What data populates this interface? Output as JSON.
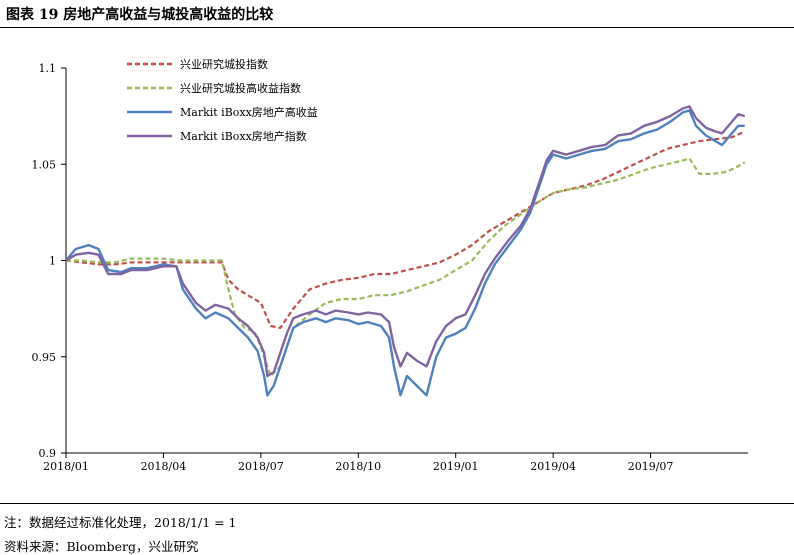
{
  "figure": {
    "title": "图表 19  房地产高收益与城投高收益的比较",
    "note": "注：数据经过标准化处理，2018/1/1 = 1",
    "source": "资料来源：Bloomberg，兴业研究"
  },
  "chart_data": {
    "type": "line",
    "title": "",
    "xlabel": "",
    "ylabel": "",
    "ylim": [
      0.9,
      1.1
    ],
    "y_ticks": [
      "0.9",
      "0.95",
      "1",
      "1.05",
      "1.1"
    ],
    "x_ticks": [
      "2018/01",
      "2018/04",
      "2018/07",
      "2018/10",
      "2019/01",
      "2019/04",
      "2019/07"
    ],
    "x_tick_positions": [
      0,
      3,
      6,
      9,
      12,
      15,
      18
    ],
    "xlim": [
      0,
      21
    ],
    "grid": false,
    "legend_position": "top-left",
    "series": [
      {
        "name": "兴业研究城投指数",
        "color": "#C0504D",
        "style": "dashed",
        "points": [
          [
            0,
            1.0
          ],
          [
            0.5,
            0.999
          ],
          [
            1,
            0.998
          ],
          [
            1.5,
            0.998
          ],
          [
            2,
            0.999
          ],
          [
            2.5,
            0.999
          ],
          [
            3,
            0.999
          ],
          [
            3.5,
            0.999
          ],
          [
            4,
            0.999
          ],
          [
            4.8,
            0.999
          ],
          [
            5,
            0.99
          ],
          [
            5.3,
            0.985
          ],
          [
            5.6,
            0.982
          ],
          [
            6,
            0.978
          ],
          [
            6.3,
            0.966
          ],
          [
            6.6,
            0.965
          ],
          [
            7,
            0.975
          ],
          [
            7.5,
            0.985
          ],
          [
            8,
            0.988
          ],
          [
            8.5,
            0.99
          ],
          [
            9,
            0.991
          ],
          [
            9.5,
            0.993
          ],
          [
            10,
            0.993
          ],
          [
            10.5,
            0.995
          ],
          [
            11,
            0.997
          ],
          [
            11.5,
            0.999
          ],
          [
            12,
            1.003
          ],
          [
            12.5,
            1.008
          ],
          [
            13,
            1.015
          ],
          [
            13.5,
            1.02
          ],
          [
            14,
            1.025
          ],
          [
            14.5,
            1.03
          ],
          [
            15,
            1.035
          ],
          [
            15.5,
            1.037
          ],
          [
            16,
            1.039
          ],
          [
            16.5,
            1.042
          ],
          [
            17,
            1.046
          ],
          [
            17.5,
            1.05
          ],
          [
            18,
            1.054
          ],
          [
            18.5,
            1.058
          ],
          [
            19,
            1.06
          ],
          [
            19.5,
            1.062
          ],
          [
            20,
            1.063
          ],
          [
            20.5,
            1.064
          ],
          [
            20.9,
            1.067
          ]
        ]
      },
      {
        "name": "兴业研究城投高收益指数",
        "color": "#9BBB59",
        "style": "dashed",
        "points": [
          [
            0,
            1.0
          ],
          [
            0.5,
            1.0
          ],
          [
            1,
            0.999
          ],
          [
            1.5,
            0.999
          ],
          [
            2,
            1.001
          ],
          [
            2.5,
            1.001
          ],
          [
            3,
            1.001
          ],
          [
            3.5,
            1.0
          ],
          [
            4,
            1.0
          ],
          [
            4.8,
            1.0
          ],
          [
            5,
            0.985
          ],
          [
            5.2,
            0.972
          ],
          [
            5.5,
            0.965
          ],
          [
            5.8,
            0.963
          ],
          [
            6,
            0.955
          ],
          [
            6.3,
            0.94
          ],
          [
            6.6,
            0.945
          ],
          [
            7,
            0.965
          ],
          [
            7.5,
            0.972
          ],
          [
            8,
            0.978
          ],
          [
            8.5,
            0.98
          ],
          [
            9,
            0.98
          ],
          [
            9.5,
            0.982
          ],
          [
            10,
            0.982
          ],
          [
            10.5,
            0.984
          ],
          [
            11,
            0.987
          ],
          [
            11.5,
            0.99
          ],
          [
            12,
            0.995
          ],
          [
            12.5,
            1.0
          ],
          [
            13,
            1.01
          ],
          [
            13.5,
            1.018
          ],
          [
            14,
            1.024
          ],
          [
            14.5,
            1.03
          ],
          [
            15,
            1.035
          ],
          [
            15.5,
            1.037
          ],
          [
            16,
            1.038
          ],
          [
            16.5,
            1.04
          ],
          [
            17,
            1.042
          ],
          [
            17.5,
            1.045
          ],
          [
            18,
            1.048
          ],
          [
            18.5,
            1.05
          ],
          [
            19,
            1.052
          ],
          [
            19.2,
            1.053
          ],
          [
            19.5,
            1.045
          ],
          [
            19.9,
            1.045
          ],
          [
            20.3,
            1.046
          ],
          [
            20.6,
            1.048
          ],
          [
            20.9,
            1.051
          ]
        ]
      },
      {
        "name": "Markit iBoxx房地产高收益",
        "color": "#4F81BD",
        "style": "solid",
        "points": [
          [
            0,
            1.0
          ],
          [
            0.3,
            1.006
          ],
          [
            0.7,
            1.008
          ],
          [
            1,
            1.006
          ],
          [
            1.3,
            0.995
          ],
          [
            1.7,
            0.994
          ],
          [
            2,
            0.996
          ],
          [
            2.5,
            0.996
          ],
          [
            3,
            0.998
          ],
          [
            3.4,
            0.997
          ],
          [
            3.6,
            0.985
          ],
          [
            4,
            0.975
          ],
          [
            4.3,
            0.97
          ],
          [
            4.6,
            0.973
          ],
          [
            5,
            0.97
          ],
          [
            5.3,
            0.965
          ],
          [
            5.6,
            0.96
          ],
          [
            5.9,
            0.953
          ],
          [
            6.1,
            0.94
          ],
          [
            6.2,
            0.93
          ],
          [
            6.4,
            0.935
          ],
          [
            6.6,
            0.945
          ],
          [
            6.8,
            0.955
          ],
          [
            7,
            0.965
          ],
          [
            7.3,
            0.968
          ],
          [
            7.7,
            0.97
          ],
          [
            8,
            0.968
          ],
          [
            8.3,
            0.97
          ],
          [
            8.7,
            0.969
          ],
          [
            9,
            0.967
          ],
          [
            9.3,
            0.968
          ],
          [
            9.7,
            0.966
          ],
          [
            9.95,
            0.96
          ],
          [
            10.1,
            0.945
          ],
          [
            10.3,
            0.93
          ],
          [
            10.5,
            0.94
          ],
          [
            10.8,
            0.935
          ],
          [
            11.1,
            0.93
          ],
          [
            11.4,
            0.95
          ],
          [
            11.7,
            0.96
          ],
          [
            12,
            0.962
          ],
          [
            12.3,
            0.965
          ],
          [
            12.6,
            0.975
          ],
          [
            12.9,
            0.988
          ],
          [
            13.2,
            0.998
          ],
          [
            13.6,
            1.007
          ],
          [
            14,
            1.016
          ],
          [
            14.3,
            1.025
          ],
          [
            14.6,
            1.04
          ],
          [
            14.8,
            1.05
          ],
          [
            15,
            1.055
          ],
          [
            15.4,
            1.053
          ],
          [
            15.8,
            1.055
          ],
          [
            16.2,
            1.057
          ],
          [
            16.6,
            1.058
          ],
          [
            17,
            1.062
          ],
          [
            17.4,
            1.063
          ],
          [
            17.8,
            1.066
          ],
          [
            18.2,
            1.068
          ],
          [
            18.6,
            1.072
          ],
          [
            19,
            1.077
          ],
          [
            19.2,
            1.078
          ],
          [
            19.4,
            1.07
          ],
          [
            19.7,
            1.065
          ],
          [
            20,
            1.062
          ],
          [
            20.2,
            1.06
          ],
          [
            20.5,
            1.066
          ],
          [
            20.7,
            1.07
          ],
          [
            20.9,
            1.07
          ]
        ]
      },
      {
        "name": "Markit iBoxx房地产指数",
        "color": "#8064A2",
        "style": "solid",
        "points": [
          [
            0,
            1.0
          ],
          [
            0.3,
            1.003
          ],
          [
            0.7,
            1.004
          ],
          [
            1,
            1.003
          ],
          [
            1.3,
            0.993
          ],
          [
            1.7,
            0.993
          ],
          [
            2,
            0.995
          ],
          [
            2.5,
            0.995
          ],
          [
            3,
            0.997
          ],
          [
            3.4,
            0.997
          ],
          [
            3.6,
            0.988
          ],
          [
            4,
            0.978
          ],
          [
            4.3,
            0.974
          ],
          [
            4.6,
            0.977
          ],
          [
            5,
            0.975
          ],
          [
            5.3,
            0.97
          ],
          [
            5.6,
            0.966
          ],
          [
            5.9,
            0.96
          ],
          [
            6.1,
            0.952
          ],
          [
            6.2,
            0.94
          ],
          [
            6.4,
            0.942
          ],
          [
            6.6,
            0.952
          ],
          [
            6.8,
            0.962
          ],
          [
            7,
            0.97
          ],
          [
            7.3,
            0.972
          ],
          [
            7.7,
            0.974
          ],
          [
            8,
            0.972
          ],
          [
            8.3,
            0.974
          ],
          [
            8.7,
            0.973
          ],
          [
            9,
            0.972
          ],
          [
            9.3,
            0.973
          ],
          [
            9.7,
            0.972
          ],
          [
            9.95,
            0.968
          ],
          [
            10.1,
            0.955
          ],
          [
            10.3,
            0.945
          ],
          [
            10.5,
            0.952
          ],
          [
            10.8,
            0.948
          ],
          [
            11.1,
            0.945
          ],
          [
            11.4,
            0.958
          ],
          [
            11.7,
            0.966
          ],
          [
            12,
            0.97
          ],
          [
            12.3,
            0.972
          ],
          [
            12.6,
            0.982
          ],
          [
            12.9,
            0.993
          ],
          [
            13.2,
            1.001
          ],
          [
            13.6,
            1.01
          ],
          [
            14,
            1.018
          ],
          [
            14.3,
            1.027
          ],
          [
            14.6,
            1.042
          ],
          [
            14.8,
            1.052
          ],
          [
            15,
            1.057
          ],
          [
            15.4,
            1.055
          ],
          [
            15.8,
            1.057
          ],
          [
            16.2,
            1.059
          ],
          [
            16.6,
            1.06
          ],
          [
            17,
            1.065
          ],
          [
            17.4,
            1.066
          ],
          [
            17.8,
            1.07
          ],
          [
            18.2,
            1.072
          ],
          [
            18.6,
            1.075
          ],
          [
            19,
            1.079
          ],
          [
            19.2,
            1.08
          ],
          [
            19.4,
            1.074
          ],
          [
            19.7,
            1.069
          ],
          [
            20,
            1.067
          ],
          [
            20.2,
            1.066
          ],
          [
            20.5,
            1.072
          ],
          [
            20.7,
            1.076
          ],
          [
            20.9,
            1.075
          ]
        ]
      }
    ]
  }
}
